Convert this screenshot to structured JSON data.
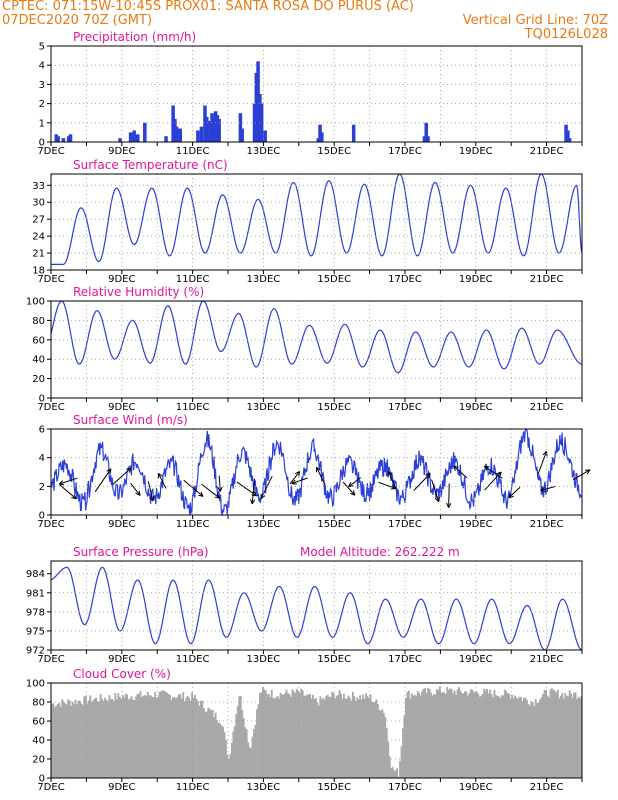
{
  "header": {
    "line1_left": "CPTEC:   071:15W-10:45S   PROX01: SANTA ROSA DO PURUS (AC)",
    "line2_left": "07DEC2020 70Z (GMT)",
    "line2_right": "Vertical Grid Line: 70Z",
    "line3_right": "TQ0126L028"
  },
  "colors": {
    "header": "#e87a14",
    "title": "#e0169a",
    "line": "#2a3fd6",
    "cloud": "#a9a9a9"
  },
  "x_ticks": [
    "7DEC",
    "9DEC",
    "11DEC",
    "13DEC",
    "15DEC",
    "17DEC",
    "19DEC",
    "21DEC"
  ],
  "chart_data": [
    {
      "id": "precip",
      "type": "bar",
      "title": "Precipitation (mm/h)",
      "ylim": [
        0,
        5
      ],
      "yticks": [
        "0",
        "1",
        "2",
        "3",
        "4",
        "5"
      ],
      "x_unit": "days since 7DEC 00Z",
      "bars": [
        [
          0.1,
          0.4
        ],
        [
          0.15,
          0.3
        ],
        [
          0.3,
          0.2
        ],
        [
          0.45,
          0.3
        ],
        [
          0.5,
          0.4
        ],
        [
          1.9,
          0.2
        ],
        [
          2.2,
          0.5
        ],
        [
          2.3,
          0.6
        ],
        [
          2.4,
          0.4
        ],
        [
          2.6,
          1.0
        ],
        [
          3.2,
          0.3
        ],
        [
          3.4,
          1.9
        ],
        [
          3.45,
          1.2
        ],
        [
          3.5,
          0.8
        ],
        [
          3.6,
          0.7
        ],
        [
          4.1,
          0.6
        ],
        [
          4.2,
          0.8
        ],
        [
          4.3,
          1.9
        ],
        [
          4.35,
          1.3
        ],
        [
          4.45,
          1.1
        ],
        [
          4.5,
          1.5
        ],
        [
          4.55,
          1.2
        ],
        [
          4.6,
          1.6
        ],
        [
          4.65,
          1.4
        ],
        [
          4.7,
          1.2
        ],
        [
          5.3,
          1.5
        ],
        [
          5.35,
          0.7
        ],
        [
          5.7,
          2.0
        ],
        [
          5.75,
          3.6
        ],
        [
          5.8,
          4.2
        ],
        [
          5.85,
          2.5
        ],
        [
          5.9,
          2.0
        ],
        [
          6.0,
          0.6
        ],
        [
          7.5,
          0.2
        ],
        [
          7.55,
          0.9
        ],
        [
          7.6,
          0.5
        ],
        [
          8.5,
          0.9
        ],
        [
          10.5,
          0.3
        ],
        [
          10.55,
          1.0
        ],
        [
          10.6,
          0.3
        ],
        [
          14.5,
          0.9
        ],
        [
          14.55,
          0.6
        ],
        [
          14.6,
          0.2
        ]
      ]
    },
    {
      "id": "temp",
      "type": "line",
      "title": "Surface Temperature (nC)",
      "ylim": [
        18,
        35
      ],
      "yticks": [
        "18",
        "21",
        "24",
        "27",
        "30",
        "33"
      ],
      "max_times": [
        0.85,
        1.85,
        2.85,
        3.85,
        4.85,
        5.85,
        6.85,
        7.85,
        8.85,
        9.85,
        10.85,
        11.85,
        12.85,
        13.85,
        14.85
      ],
      "max_values": [
        29,
        32.5,
        32.5,
        32.5,
        31.3,
        30.5,
        33.5,
        33.8,
        33.2,
        35,
        33.5,
        33,
        32.5,
        35,
        33
      ],
      "min_values": [
        19,
        19.5,
        22.5,
        20.5,
        21,
        21,
        21,
        20.5,
        21,
        20.5,
        20.5,
        21,
        21,
        20.5,
        21
      ]
    },
    {
      "id": "rh",
      "type": "line",
      "title": "Relative Humidity (%)",
      "ylim": [
        0,
        100
      ],
      "yticks": [
        "0",
        "20",
        "40",
        "60",
        "80",
        "100"
      ],
      "max_times": [
        0.3,
        1.3,
        2.3,
        3.3,
        4.3,
        5.3,
        6.3,
        7.3,
        8.3,
        9.3,
        10.3,
        11.3,
        12.3,
        13.3,
        14.3
      ],
      "max_values": [
        100,
        90,
        80,
        95,
        100,
        87,
        92,
        75,
        76,
        70,
        68,
        68,
        70,
        72,
        70
      ],
      "min_values": [
        48,
        35,
        40,
        36,
        35,
        48,
        32,
        35,
        36,
        32,
        26,
        32,
        32,
        30,
        35
      ]
    },
    {
      "id": "wind",
      "type": "line",
      "title": "Surface Wind (m/s)",
      "ylim": [
        0,
        6
      ],
      "yticks": [
        "0",
        "2",
        "4",
        "6"
      ],
      "max_times": [
        0.4,
        1.4,
        2.4,
        3.4,
        4.4,
        5.4,
        6.4,
        7.4,
        8.4,
        9.4,
        10.4,
        11.4,
        12.4,
        13.4,
        14.4
      ],
      "max_values": [
        3.5,
        4.5,
        3.8,
        3.5,
        5.2,
        4.4,
        5.0,
        4.6,
        3.6,
        3.4,
        3.8,
        3.7,
        3.5,
        5.6,
        5.1
      ],
      "min_values": [
        1.8,
        0.8,
        1.4,
        1.2,
        0.5,
        0.3,
        1.3,
        1.0,
        1.2,
        1.5,
        1.2,
        1.5,
        1.0,
        1.0,
        1.8
      ]
    },
    {
      "id": "pres",
      "type": "line",
      "title": "Surface Pressure (hPa)",
      "subtitle": "Model Altitude: 262.222 m",
      "ylim": [
        972,
        986
      ],
      "yticks": [
        "972",
        "975",
        "978",
        "981",
        "984"
      ],
      "max_times": [
        0.45,
        1.45,
        2.45,
        3.45,
        4.45,
        5.45,
        6.45,
        7.45,
        8.45,
        9.45,
        10.45,
        11.45,
        12.45,
        13.45,
        14.45
      ],
      "max_values": [
        985,
        985,
        983,
        983,
        983,
        981,
        982,
        982,
        981,
        980,
        980,
        980,
        980,
        979,
        980
      ],
      "min_values": [
        983,
        976,
        975,
        973,
        973,
        974,
        975,
        974,
        974,
        973,
        974,
        973,
        973,
        973,
        972
      ]
    },
    {
      "id": "cloud",
      "type": "area",
      "title": "Cloud Cover (%)",
      "ylim": [
        0,
        100
      ],
      "yticks": [
        "0",
        "20",
        "40",
        "60",
        "80",
        "100"
      ],
      "profile": [
        [
          0,
          78
        ],
        [
          1,
          82
        ],
        [
          2,
          86
        ],
        [
          3,
          88
        ],
        [
          4,
          85
        ],
        [
          4.8,
          60
        ],
        [
          5.0,
          20
        ],
        [
          5.3,
          90
        ],
        [
          5.6,
          30
        ],
        [
          5.9,
          92
        ],
        [
          6.3,
          88
        ],
        [
          7,
          90
        ],
        [
          7.5,
          80
        ],
        [
          8,
          88
        ],
        [
          8.5,
          86
        ],
        [
          9,
          85
        ],
        [
          9.4,
          70
        ],
        [
          9.6,
          10
        ],
        [
          9.8,
          5
        ],
        [
          10.0,
          88
        ],
        [
          11,
          92
        ],
        [
          12,
          90
        ],
        [
          13,
          88
        ],
        [
          13.6,
          80
        ],
        [
          14,
          90
        ],
        [
          14.5,
          88
        ],
        [
          15,
          88
        ]
      ]
    }
  ]
}
